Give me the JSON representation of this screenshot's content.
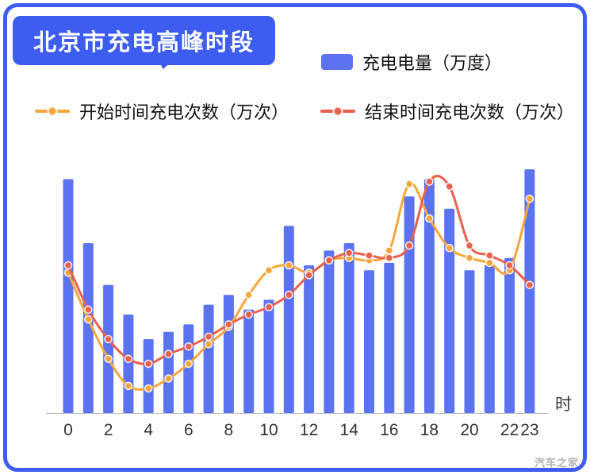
{
  "title": "北京市充电高峰时段",
  "watermark": "汽车之家",
  "colors": {
    "accent_blue": "#3d5cf0",
    "bar": "#5b73f0",
    "start_line": "#f7a63c",
    "end_line": "#e9604c",
    "axis": "#b9bac4",
    "tick_text": "#333333"
  },
  "chart_data": {
    "type": "mixed",
    "x_hours": [
      0,
      1,
      2,
      3,
      4,
      5,
      6,
      7,
      8,
      9,
      10,
      11,
      12,
      13,
      14,
      15,
      16,
      17,
      18,
      19,
      20,
      21,
      22,
      23
    ],
    "xtick_hours": [
      0,
      2,
      4,
      6,
      8,
      10,
      12,
      14,
      16,
      18,
      20,
      22,
      23
    ],
    "xtick_labels": [
      "0",
      "2",
      "4",
      "6",
      "8",
      "10",
      "12",
      "14",
      "16",
      "18",
      "20",
      "22",
      "23"
    ],
    "x_unit": "时",
    "ylim": [
      0,
      100
    ],
    "grid": false,
    "legend_position": "top",
    "series": [
      {
        "name": "充电电量（万度）",
        "type": "bar",
        "color": "#5b73f0",
        "values": [
          95,
          69,
          52,
          40,
          30,
          33,
          36,
          44,
          48,
          42,
          46,
          76,
          60,
          66,
          69,
          58,
          61,
          88,
          95,
          83,
          58,
          60,
          63,
          99
        ]
      },
      {
        "name": "开始时间充电次数（万次）",
        "type": "line",
        "color": "#f7a63c",
        "values": [
          57,
          38,
          22,
          11,
          10,
          14,
          20,
          28,
          35,
          48,
          58,
          60,
          57,
          62,
          63,
          62,
          66,
          93,
          79,
          67,
          63,
          61,
          58,
          87
        ]
      },
      {
        "name": "结束时间充电次数（万次）",
        "type": "line",
        "color": "#e9604c",
        "values": [
          60,
          42,
          30,
          22,
          20,
          24,
          27,
          31,
          36,
          40,
          43,
          48,
          56,
          62,
          65,
          64,
          63,
          68,
          94,
          92,
          68,
          64,
          60,
          52
        ]
      }
    ]
  }
}
